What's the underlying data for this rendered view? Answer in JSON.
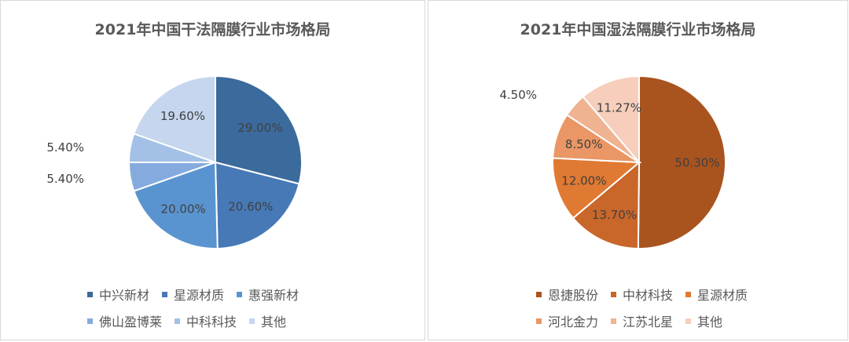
{
  "chart_data": [
    {
      "type": "pie",
      "title": "2021年中国干法隔膜行业市场格局",
      "legend_position": "bottom",
      "slices": [
        {
          "label": "中兴新材",
          "value": 29.0,
          "value_label": "29.00%",
          "color": "#3b6a9c"
        },
        {
          "label": "星源材质",
          "value": 20.6,
          "value_label": "20.60%",
          "color": "#4679b6"
        },
        {
          "label": "惠强新材",
          "value": 20.0,
          "value_label": "20.00%",
          "color": "#5a94d0"
        },
        {
          "label": "佛山盈博莱",
          "value": 5.4,
          "value_label": "5.40%",
          "color": "#85abde"
        },
        {
          "label": "中科科技",
          "value": 5.4,
          "value_label": "5.40%",
          "color": "#a3c1e6"
        },
        {
          "label": "其他",
          "value": 19.6,
          "value_label": "19.60%",
          "color": "#c5d6ee"
        }
      ]
    },
    {
      "type": "pie",
      "title": "2021年中国湿法隔膜行业市场格局",
      "legend_position": "bottom",
      "slices": [
        {
          "label": "恩捷股份",
          "value": 50.3,
          "value_label": "50.30%",
          "color": "#a9541f"
        },
        {
          "label": "中材科技",
          "value": 13.7,
          "value_label": "13.70%",
          "color": "#c9662a"
        },
        {
          "label": "星源材质",
          "value": 12.0,
          "value_label": "12.00%",
          "color": "#e07932"
        },
        {
          "label": "河北金力",
          "value": 8.5,
          "value_label": "8.50%",
          "color": "#ea9665"
        },
        {
          "label": "江苏北星",
          "value": 4.5,
          "value_label": "4.50%",
          "color": "#f0b391"
        },
        {
          "label": "其他",
          "value": 11.27,
          "value_label": "11.27%",
          "color": "#f6cebb"
        }
      ]
    }
  ]
}
